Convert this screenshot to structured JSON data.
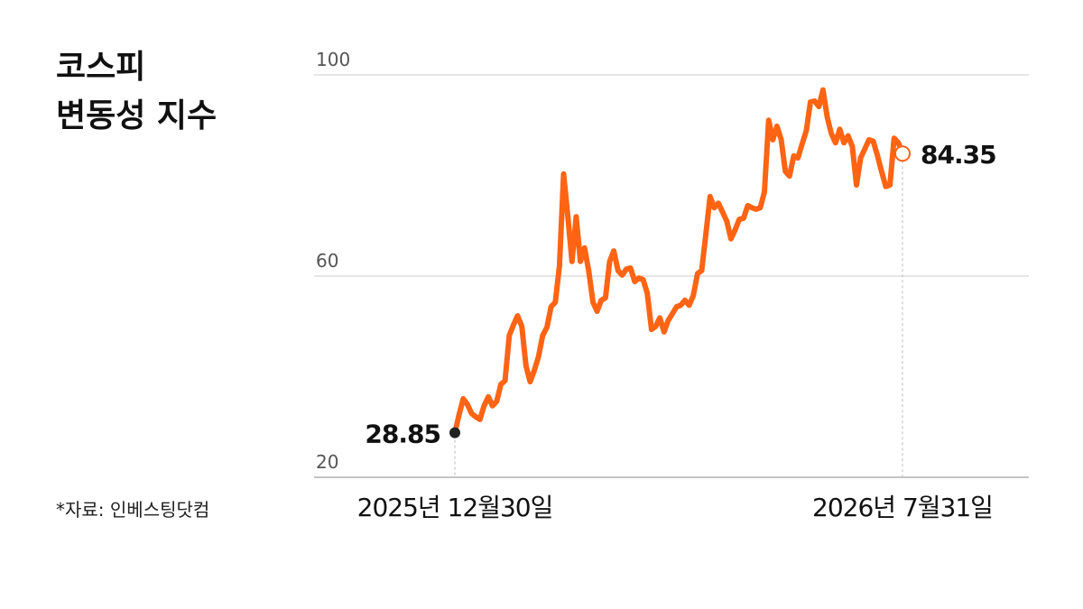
{
  "chart_data": {
    "type": "line",
    "title": [
      "코스피",
      "변동성 지수"
    ],
    "source": "*자료: 인베스팅닷컴",
    "categories": [
      "2025년 12월30일",
      null,
      null,
      null,
      null,
      null,
      null,
      null,
      null,
      null,
      null,
      null,
      null,
      null,
      null,
      null,
      null,
      null,
      null,
      null,
      null,
      null,
      null,
      null,
      null,
      null,
      null,
      null,
      null,
      null,
      null,
      null,
      null,
      null,
      null,
      null,
      null,
      null,
      null,
      null,
      null,
      null,
      null,
      null,
      null,
      null,
      null,
      null,
      null,
      null,
      null,
      null,
      null,
      null,
      null,
      null,
      null,
      null,
      null,
      null,
      null,
      null,
      null,
      null,
      null,
      null,
      null,
      null,
      null,
      null,
      null,
      null,
      null,
      null,
      null,
      null,
      null,
      null,
      null,
      null,
      null,
      null,
      null,
      null,
      null,
      null,
      null,
      null,
      null,
      null,
      null,
      null,
      null,
      null,
      null,
      null,
      null,
      null,
      null,
      null,
      null,
      null,
      null,
      null,
      null,
      null,
      null,
      "2026년 7월31일"
    ],
    "series": [
      {
        "color": "#ff6414",
        "values": [
          28.85,
          32.4,
          35.6,
          34.5,
          32.7,
          32.0,
          31.5,
          34.2,
          36.0,
          34.2,
          35.1,
          38.5,
          39.2,
          48.2,
          50.3,
          52.1,
          50.0,
          42.2,
          39.0,
          41.3,
          44.0,
          48.2,
          49.8,
          53.9,
          54.8,
          62.0,
          80.3,
          71.8,
          62.9,
          71.8,
          62.9,
          65.6,
          61.1,
          54.8,
          53.0,
          55.2,
          55.7,
          62.9,
          65.0,
          61.1,
          60.2,
          61.4,
          61.6,
          58.9,
          59.6,
          59.3,
          56.6,
          49.4,
          50.0,
          51.7,
          48.9,
          51.2,
          52.5,
          53.9,
          54.2,
          55.2,
          54.2,
          56.1,
          60.5,
          61.1,
          68.3,
          75.8,
          73.6,
          74.5,
          72.7,
          70.9,
          67.4,
          69.2,
          71.3,
          71.5,
          74.0,
          73.6,
          73.3,
          73.6,
          76.7,
          91.0,
          87.1,
          89.8,
          87.1,
          80.8,
          79.9,
          83.9,
          83.5,
          86.2,
          88.9,
          94.6,
          94.8,
          93.7,
          97.0,
          91.6,
          88.3,
          86.5,
          89.2,
          86.5,
          87.9,
          85.8,
          78.1,
          83.5,
          85.3,
          87.1,
          86.8,
          84.0,
          80.8,
          77.8,
          78.1,
          87.4,
          86.5,
          84.35
        ]
      }
    ],
    "ylim": [
      20,
      100
    ],
    "yticks": [
      20,
      60,
      100
    ],
    "grid": true
  }
}
